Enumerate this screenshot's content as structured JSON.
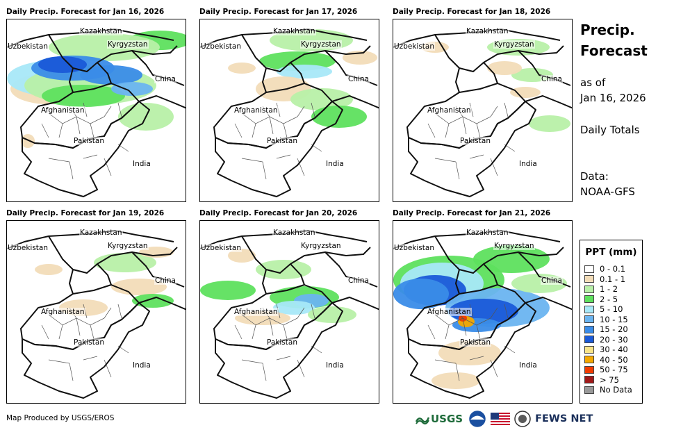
{
  "panels": [
    {
      "title": "Daily Precip. Forecast for Jan 16, 2026",
      "pattern": "heavy-north"
    },
    {
      "title": "Daily Precip. Forecast for Jan 17, 2026",
      "pattern": "moderate-north"
    },
    {
      "title": "Daily Precip. Forecast for Jan 18, 2026",
      "pattern": "light"
    },
    {
      "title": "Daily Precip. Forecast for Jan 19, 2026",
      "pattern": "light-2"
    },
    {
      "title": "Daily Precip. Forecast for Jan 20, 2026",
      "pattern": "moderate-central"
    },
    {
      "title": "Daily Precip. Forecast for Jan 21, 2026",
      "pattern": "heavy-central"
    }
  ],
  "countries": {
    "kazakhstan": "Kazakhstan",
    "uzbekistan": "Uzbekistan",
    "kyrgyzstan": "Kyrgyzstan",
    "china": "China",
    "afghanistan": "Afghanistan",
    "pakistan": "Pakistan",
    "india": "India"
  },
  "sidebar": {
    "title_line1": "Precip.",
    "title_line2": "Forecast",
    "as_of": "as of",
    "date": "Jan 16, 2026",
    "daily_totals": "Daily Totals",
    "data_label": "Data:",
    "data_source": "NOAA-GFS"
  },
  "legend": {
    "title": "PPT (mm)",
    "items": [
      {
        "label": "0 - 0.1",
        "color": "#ffffff"
      },
      {
        "label": "0.1 - 1",
        "color": "#f2dcb8"
      },
      {
        "label": "1 - 2",
        "color": "#b8f0a8"
      },
      {
        "label": "2 - 5",
        "color": "#5ee05e"
      },
      {
        "label": "5 - 10",
        "color": "#a8e8f8"
      },
      {
        "label": "10 - 15",
        "color": "#6ab4f0"
      },
      {
        "label": "15 - 20",
        "color": "#3a8ce8"
      },
      {
        "label": "20 - 30",
        "color": "#1a5ad8"
      },
      {
        "label": "30 - 40",
        "color": "#f8e488"
      },
      {
        "label": "40 - 50",
        "color": "#f4a800"
      },
      {
        "label": "50 - 75",
        "color": "#f03c00"
      },
      {
        "label": "> 75",
        "color": "#a01818"
      },
      {
        "label": "No Data",
        "color": "#999999"
      }
    ]
  },
  "footer": {
    "produced_by": "Map Produced by USGS/EROS",
    "usgs": "USGS",
    "fews": "FEWS NET"
  }
}
